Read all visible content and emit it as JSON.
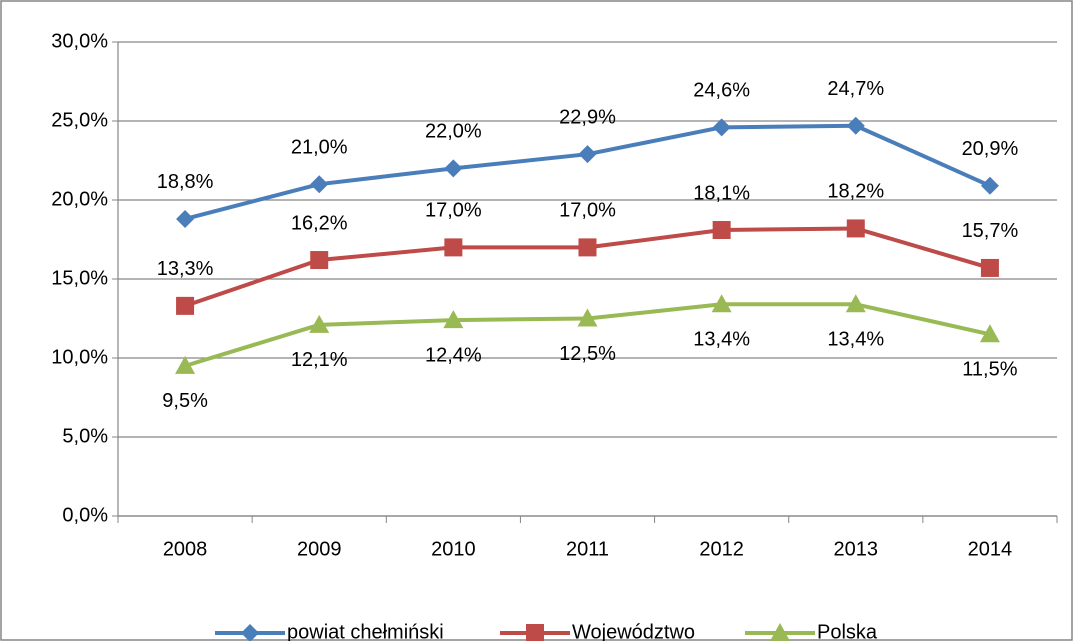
{
  "chart_data": {
    "type": "line",
    "categories": [
      "2008",
      "2009",
      "2010",
      "2011",
      "2012",
      "2013",
      "2014"
    ],
    "series": [
      {
        "name": "powiat chełmiński",
        "color": "#4a7ebb",
        "marker": "diamond",
        "values": [
          18.8,
          21.0,
          22.0,
          22.9,
          24.6,
          24.7,
          20.9
        ],
        "value_labels": [
          "18,8%",
          "21,0%",
          "22,0%",
          "22,9%",
          "24,6%",
          "24,7%",
          "20,9%"
        ]
      },
      {
        "name": "Województwo",
        "color": "#be4b48",
        "marker": "square",
        "values": [
          13.3,
          16.2,
          17.0,
          17.0,
          18.1,
          18.2,
          15.7
        ],
        "value_labels": [
          "13,3%",
          "16,2%",
          "17,0%",
          "17,0%",
          "18,1%",
          "18,2%",
          "15,7%"
        ]
      },
      {
        "name": "Polska",
        "color": "#98b954",
        "marker": "triangle",
        "values": [
          9.5,
          12.1,
          12.4,
          12.5,
          13.4,
          13.4,
          11.5
        ],
        "value_labels": [
          "9,5%",
          "12,1%",
          "12,4%",
          "12,5%",
          "13,4%",
          "13,4%",
          "11,5%"
        ]
      }
    ],
    "ylim": [
      0,
      30
    ],
    "yticks": [
      {
        "value": 0,
        "label": "0,0%"
      },
      {
        "value": 5,
        "label": "5,0%"
      },
      {
        "value": 10,
        "label": "10,0%"
      },
      {
        "value": 15,
        "label": "15,0%"
      },
      {
        "value": 20,
        "label": "20,0%"
      },
      {
        "value": 25,
        "label": "25,0%"
      },
      {
        "value": 30,
        "label": "30,0%"
      }
    ],
    "grid": true,
    "legend": "bottom"
  }
}
